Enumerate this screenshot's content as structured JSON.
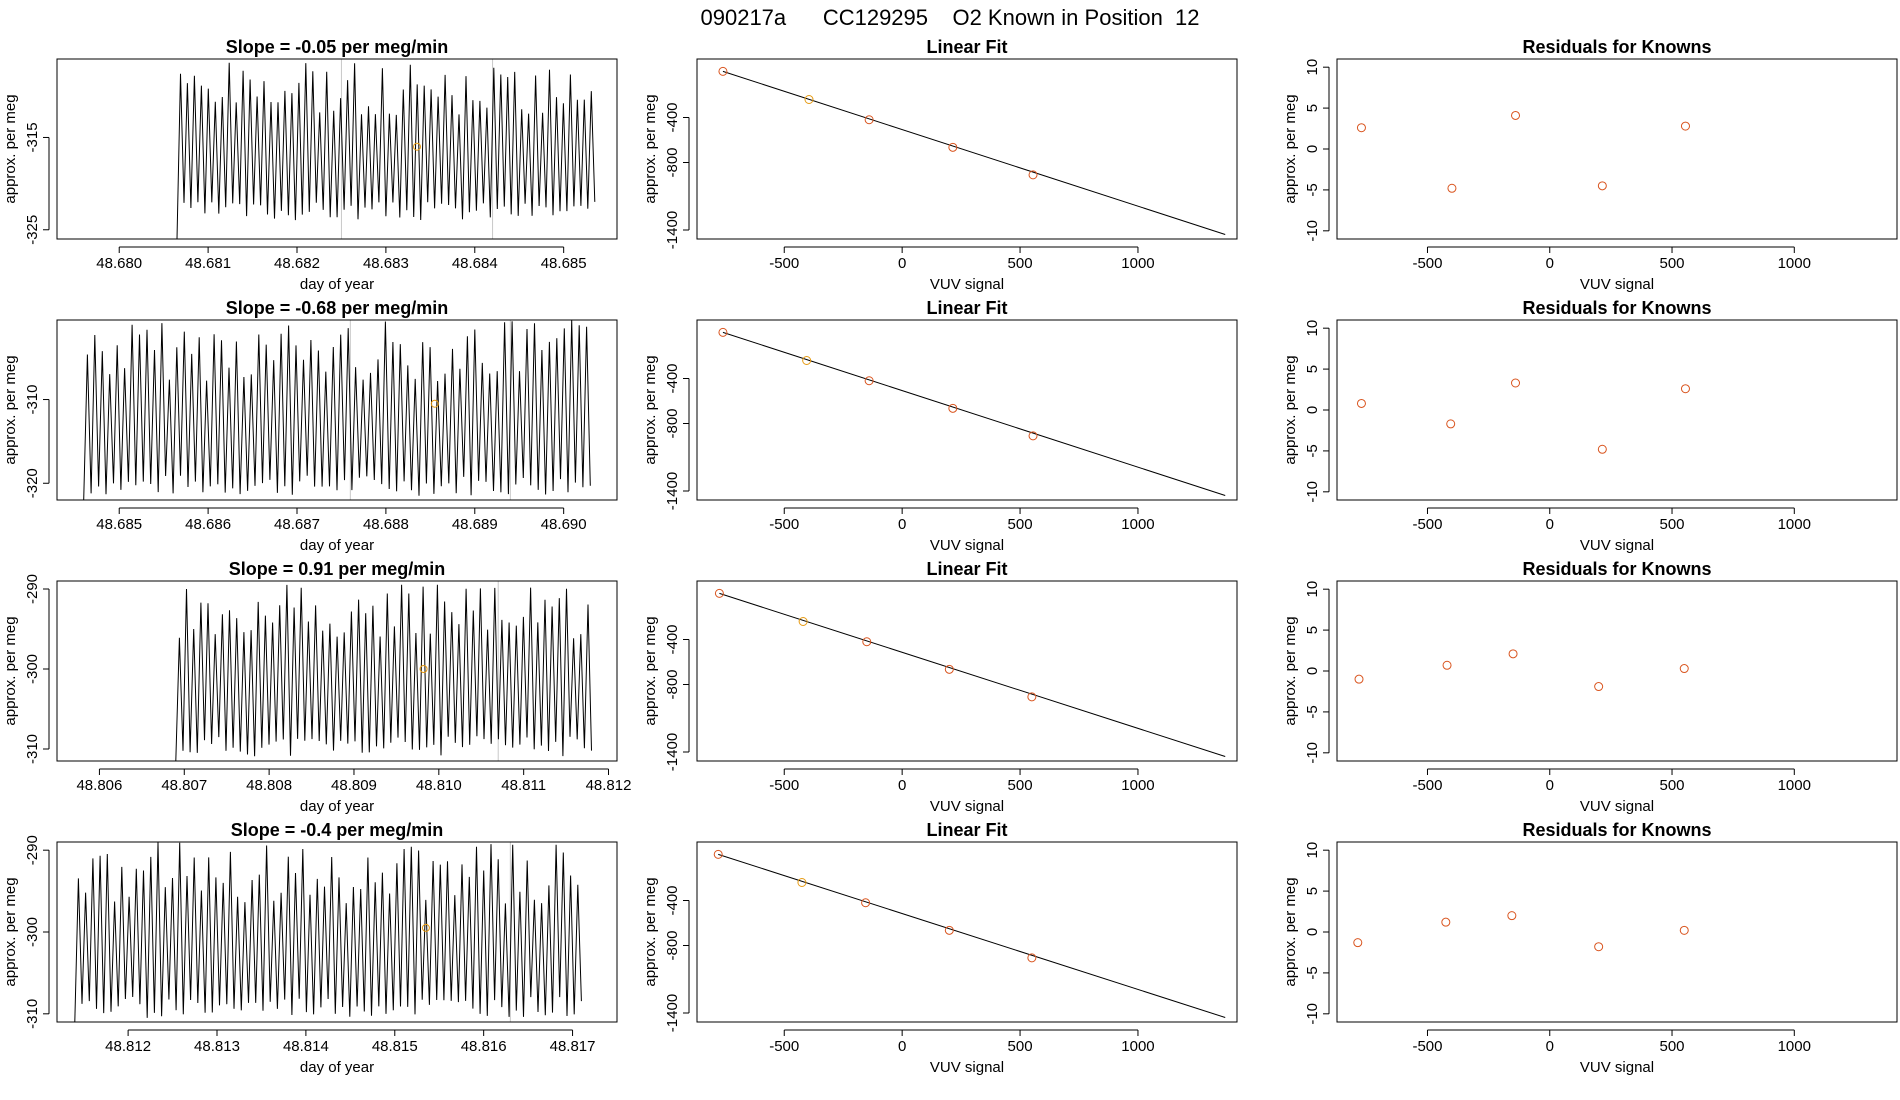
{
  "page_title": "090217a      CC129295    O2 Known in Position  12",
  "colors": {
    "line": "#000000",
    "known_point": "#d9541e",
    "highlight_point": "#e69a12",
    "marker_line": "#c8c8c8",
    "axis": "#000000"
  },
  "chart_data": [
    {
      "type": "line",
      "panel": "time-series-1",
      "title": "Slope =  -0.05  per meg/min",
      "xlabel": "day of year",
      "ylabel": "approx. per meg",
      "xlim": [
        48.6793,
        48.6856
      ],
      "ylim": [
        -326,
        -306.5
      ],
      "xticks": [
        48.68,
        48.681,
        48.682,
        48.683,
        48.684,
        48.685
      ],
      "xtick_labels": [
        "48.680",
        "48.681",
        "48.682",
        "48.683",
        "48.684",
        "48.685"
      ],
      "yticks": [
        -325,
        -315
      ],
      "ytick_labels": [
        "-325",
        "-315"
      ],
      "vlines": [
        48.6825,
        48.6842
      ],
      "highlight_point": {
        "x": 48.68335,
        "y": -316
      },
      "signal": {
        "x_start": 48.68065,
        "x_end": 48.68535,
        "count": 60,
        "floor": -326,
        "low": -324,
        "high": -306.8,
        "seed": 3
      }
    },
    {
      "type": "scatter",
      "panel": "linear-fit-1",
      "title": "Linear Fit",
      "xlabel": "VUV signal",
      "ylabel": "approx. per meg",
      "xlim": [
        -870,
        1420
      ],
      "ylim": [
        -1480,
        120
      ],
      "xticks": [
        -500,
        0,
        500,
        1000
      ],
      "xtick_labels": [
        "-500",
        "0",
        "500",
        "1000"
      ],
      "yticks": [
        -400,
        -800,
        -1400
      ],
      "ytick_labels": [
        "-400",
        "-800",
        "-1400"
      ],
      "points": [
        {
          "x": -760,
          "y": 10,
          "color": "known"
        },
        {
          "x": -395,
          "y": -240,
          "color": "highlight"
        },
        {
          "x": -140,
          "y": -420,
          "color": "known"
        },
        {
          "x": 215,
          "y": -665,
          "color": "known"
        },
        {
          "x": 555,
          "y": -910,
          "color": "known"
        }
      ],
      "fit_line": {
        "x1": -760,
        "y1": 10,
        "x2": 1370,
        "y2": -1440
      }
    },
    {
      "type": "scatter",
      "panel": "residuals-1",
      "title": "Residuals for Knowns",
      "xlabel": "VUV signal",
      "ylabel": "approx. per meg",
      "xlim": [
        -870,
        1420
      ],
      "ylim": [
        -11,
        11
      ],
      "xticks": [
        -500,
        0,
        500,
        1000
      ],
      "xtick_labels": [
        "-500",
        "0",
        "500",
        "1000"
      ],
      "yticks": [
        -10,
        -5,
        0,
        5,
        10
      ],
      "ytick_labels": [
        "-10",
        "-5",
        "0",
        "5",
        "10"
      ],
      "points": [
        {
          "x": -770,
          "y": 2.6
        },
        {
          "x": -400,
          "y": -4.8
        },
        {
          "x": -140,
          "y": 4.1
        },
        {
          "x": 215,
          "y": -4.5
        },
        {
          "x": 555,
          "y": 2.8
        }
      ]
    },
    {
      "type": "line",
      "panel": "time-series-2",
      "title": "Slope =  -0.68  per meg/min",
      "xlabel": "day of year",
      "ylabel": "approx. per meg",
      "xlim": [
        48.6843,
        48.6906
      ],
      "ylim": [
        -322,
        -300.5
      ],
      "xticks": [
        48.685,
        48.686,
        48.687,
        48.688,
        48.689,
        48.69
      ],
      "xtick_labels": [
        "48.685",
        "48.686",
        "48.687",
        "48.688",
        "48.689",
        "48.690"
      ],
      "yticks": [
        -320,
        -310
      ],
      "ytick_labels": [
        "-320",
        "-310"
      ],
      "vlines": [
        48.6876,
        48.6894
      ],
      "highlight_point": {
        "x": 48.68855,
        "y": -310.5
      },
      "signal": {
        "x_start": 48.6846,
        "x_end": 48.6903,
        "count": 68,
        "floor": -322,
        "low": -321.5,
        "high": -300.5,
        "seed": 7
      }
    },
    {
      "type": "scatter",
      "panel": "linear-fit-2",
      "title": "Linear Fit",
      "xlabel": "VUV signal",
      "ylabel": "approx. per meg",
      "xlim": [
        -870,
        1420
      ],
      "ylim": [
        -1480,
        120
      ],
      "xticks": [
        -500,
        0,
        500,
        1000
      ],
      "xtick_labels": [
        "-500",
        "0",
        "500",
        "1000"
      ],
      "yticks": [
        -400,
        -800,
        -1400
      ],
      "ytick_labels": [
        "-400",
        "-800",
        "-1400"
      ],
      "points": [
        {
          "x": -760,
          "y": 10,
          "color": "known"
        },
        {
          "x": -405,
          "y": -240,
          "color": "highlight"
        },
        {
          "x": -140,
          "y": -420,
          "color": "known"
        },
        {
          "x": 215,
          "y": -665,
          "color": "known"
        },
        {
          "x": 555,
          "y": -910,
          "color": "known"
        }
      ],
      "fit_line": {
        "x1": -760,
        "y1": 10,
        "x2": 1370,
        "y2": -1440
      }
    },
    {
      "type": "scatter",
      "panel": "residuals-2",
      "title": "Residuals for Knowns",
      "xlabel": "VUV signal",
      "ylabel": "approx. per meg",
      "xlim": [
        -870,
        1420
      ],
      "ylim": [
        -11,
        11
      ],
      "xticks": [
        -500,
        0,
        500,
        1000
      ],
      "xtick_labels": [
        "-500",
        "0",
        "500",
        "1000"
      ],
      "yticks": [
        -10,
        -5,
        0,
        5,
        10
      ],
      "ytick_labels": [
        "-10",
        "-5",
        "0",
        "5",
        "10"
      ],
      "points": [
        {
          "x": -770,
          "y": 0.8
        },
        {
          "x": -405,
          "y": -1.7
        },
        {
          "x": -140,
          "y": 3.3
        },
        {
          "x": 215,
          "y": -4.8
        },
        {
          "x": 555,
          "y": 2.6
        }
      ]
    },
    {
      "type": "line",
      "panel": "time-series-3",
      "title": "Slope =  0.91  per meg/min",
      "xlabel": "day of year",
      "ylabel": "approx. per meg",
      "xlim": [
        48.8055,
        48.8121
      ],
      "ylim": [
        -311.5,
        -289
      ],
      "xticks": [
        48.806,
        48.807,
        48.808,
        48.809,
        48.81,
        48.811,
        48.812
      ],
      "xtick_labels": [
        "48.806",
        "48.807",
        "48.808",
        "48.809",
        "48.810",
        "48.811",
        "48.812"
      ],
      "yticks": [
        -310,
        -300,
        -290
      ],
      "ytick_labels": [
        "-310",
        "-300",
        "-290"
      ],
      "vlines": [
        48.8107
      ],
      "highlight_point": {
        "x": 48.80982,
        "y": -300
      },
      "signal": {
        "x_start": 48.8069,
        "x_end": 48.8118,
        "count": 58,
        "floor": -311.5,
        "low": -311,
        "high": -289.2,
        "seed": 11
      }
    },
    {
      "type": "scatter",
      "panel": "linear-fit-3",
      "title": "Linear Fit",
      "xlabel": "VUV signal",
      "ylabel": "approx. per meg",
      "xlim": [
        -870,
        1420
      ],
      "ylim": [
        -1480,
        120
      ],
      "xticks": [
        -500,
        0,
        500,
        1000
      ],
      "xtick_labels": [
        "-500",
        "0",
        "500",
        "1000"
      ],
      "yticks": [
        -400,
        -800,
        -1400
      ],
      "ytick_labels": [
        "-400",
        "-800",
        "-1400"
      ],
      "points": [
        {
          "x": -775,
          "y": 10,
          "color": "known"
        },
        {
          "x": -420,
          "y": -240,
          "color": "highlight"
        },
        {
          "x": -150,
          "y": -420,
          "color": "known"
        },
        {
          "x": 200,
          "y": -665,
          "color": "known"
        },
        {
          "x": 550,
          "y": -910,
          "color": "known"
        }
      ],
      "fit_line": {
        "x1": -775,
        "y1": 10,
        "x2": 1370,
        "y2": -1440
      }
    },
    {
      "type": "scatter",
      "panel": "residuals-3",
      "title": "Residuals for Knowns",
      "xlabel": "VUV signal",
      "ylabel": "approx. per meg",
      "xlim": [
        -870,
        1420
      ],
      "ylim": [
        -11,
        11
      ],
      "xticks": [
        -500,
        0,
        500,
        1000
      ],
      "xtick_labels": [
        "-500",
        "0",
        "500",
        "1000"
      ],
      "yticks": [
        -10,
        -5,
        0,
        5,
        10
      ],
      "ytick_labels": [
        "-10",
        "-5",
        "0",
        "5",
        "10"
      ],
      "points": [
        {
          "x": -780,
          "y": -1.0
        },
        {
          "x": -420,
          "y": 0.7
        },
        {
          "x": -150,
          "y": 2.1
        },
        {
          "x": 200,
          "y": -1.9
        },
        {
          "x": 550,
          "y": 0.3
        }
      ]
    },
    {
      "type": "line",
      "panel": "time-series-4",
      "title": "Slope =  -0.4  per meg/min",
      "xlabel": "day of year",
      "ylabel": "approx. per meg",
      "xlim": [
        48.8112,
        48.8175
      ],
      "ylim": [
        -311,
        -289
      ],
      "xticks": [
        48.812,
        48.813,
        48.814,
        48.815,
        48.816,
        48.817
      ],
      "xtick_labels": [
        "48.812",
        "48.813",
        "48.814",
        "48.815",
        "48.816",
        "48.817"
      ],
      "yticks": [
        -310,
        -300,
        -290
      ],
      "ytick_labels": [
        "-310",
        "-300",
        "-290"
      ],
      "vlines": [
        48.8163
      ],
      "highlight_point": {
        "x": 48.81535,
        "y": -299.5
      },
      "signal": {
        "x_start": 48.8114,
        "x_end": 48.8171,
        "count": 70,
        "floor": -311,
        "low": -310.5,
        "high": -289,
        "seed": 19
      }
    },
    {
      "type": "scatter",
      "panel": "linear-fit-4",
      "title": "Linear Fit",
      "xlabel": "VUV signal",
      "ylabel": "approx. per meg",
      "xlim": [
        -870,
        1420
      ],
      "ylim": [
        -1480,
        120
      ],
      "xticks": [
        -500,
        0,
        500,
        1000
      ],
      "xtick_labels": [
        "-500",
        "0",
        "500",
        "1000"
      ],
      "yticks": [
        -400,
        -800,
        -1400
      ],
      "ytick_labels": [
        "-400",
        "-800",
        "-1400"
      ],
      "points": [
        {
          "x": -780,
          "y": 10,
          "color": "known"
        },
        {
          "x": -425,
          "y": -240,
          "color": "highlight"
        },
        {
          "x": -155,
          "y": -420,
          "color": "known"
        },
        {
          "x": 200,
          "y": -665,
          "color": "known"
        },
        {
          "x": 550,
          "y": -910,
          "color": "known"
        }
      ],
      "fit_line": {
        "x1": -780,
        "y1": 10,
        "x2": 1370,
        "y2": -1440
      }
    },
    {
      "type": "scatter",
      "panel": "residuals-4",
      "title": "Residuals for Knowns",
      "xlabel": "VUV signal",
      "ylabel": "approx. per meg",
      "xlim": [
        -870,
        1420
      ],
      "ylim": [
        -11,
        11
      ],
      "xticks": [
        -500,
        0,
        500,
        1000
      ],
      "xtick_labels": [
        "-500",
        "0",
        "500",
        "1000"
      ],
      "yticks": [
        -10,
        -5,
        0,
        5,
        10
      ],
      "ytick_labels": [
        "-10",
        "-5",
        "0",
        "5",
        "10"
      ],
      "points": [
        {
          "x": -785,
          "y": -1.3
        },
        {
          "x": -425,
          "y": 1.2
        },
        {
          "x": -155,
          "y": 2.0
        },
        {
          "x": 200,
          "y": -1.8
        },
        {
          "x": 550,
          "y": 0.2
        }
      ]
    }
  ]
}
